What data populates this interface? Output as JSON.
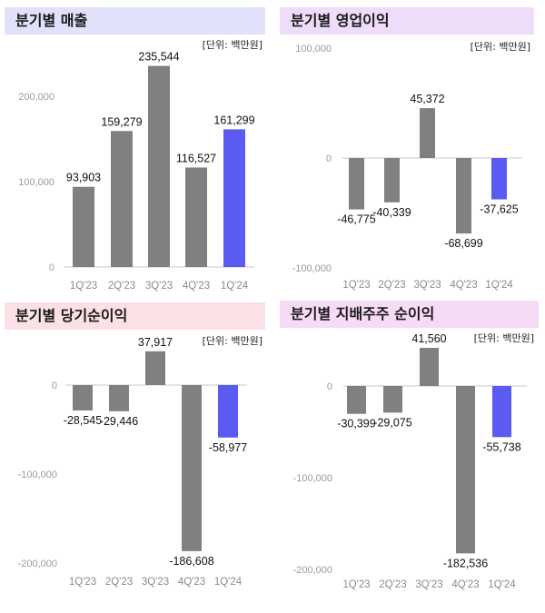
{
  "colors": {
    "bar": "#808080",
    "highlight": "#5b5bf2",
    "axis": "#dcdcdc"
  },
  "chart_data": [
    {
      "type": "bar",
      "title": "분기별 매출",
      "title_bg": "#e1e1fb",
      "unit": "[단위: 백만원]",
      "categories": [
        "1Q'23",
        "2Q'23",
        "3Q'23",
        "4Q'23",
        "1Q'24"
      ],
      "values": [
        93903,
        159279,
        235544,
        116527,
        161299
      ],
      "labels": [
        "93,903",
        "159,279",
        "235,544",
        "116,527",
        "161,299"
      ],
      "y_ticks": [
        {
          "v": 200000,
          "t": "200,000"
        },
        {
          "v": 100000,
          "t": "100,000"
        },
        {
          "v": 0,
          "t": "0"
        }
      ],
      "highlight_index": 4
    },
    {
      "type": "bar",
      "title": "분기별 영업이익",
      "title_bg": "#eedcf8",
      "unit": "[단위: 백만원]",
      "categories": [
        "1Q'23",
        "2Q'23",
        "3Q'23",
        "4Q'23",
        "1Q'24"
      ],
      "values": [
        -46775,
        -40339,
        45372,
        -68699,
        -37625
      ],
      "labels": [
        "-46,775",
        "-40,339",
        "45,372",
        "-68,699",
        "-37,625"
      ],
      "y_ticks": [
        {
          "v": 100000,
          "t": "100,000"
        },
        {
          "v": 0,
          "t": "0"
        },
        {
          "v": -100000,
          "t": "-100,000"
        }
      ],
      "highlight_index": 4
    },
    {
      "type": "bar",
      "title": "분기별 당기순이익",
      "title_bg": "#fbe0e6",
      "unit": "[단위: 백만원]",
      "categories": [
        "1Q'23",
        "2Q'23",
        "3Q'23",
        "4Q'23",
        "1Q'24"
      ],
      "values": [
        -28545,
        -29446,
        37917,
        -186608,
        -58977
      ],
      "labels": [
        "-28,545",
        "-29,446",
        "37,917",
        "-186,608",
        "-58,977"
      ],
      "y_ticks": [
        {
          "v": 0,
          "t": "0"
        },
        {
          "v": -100000,
          "t": "-100,000"
        },
        {
          "v": -200000,
          "t": "-200,000"
        }
      ],
      "highlight_index": 4
    },
    {
      "type": "bar",
      "title": "분기별 지배주주 순이익",
      "title_bg": "#f6dbf5",
      "unit": "[단위: 백만원]",
      "categories": [
        "1Q'23",
        "2Q'23",
        "3Q'23",
        "4Q'23",
        "1Q'24"
      ],
      "values": [
        -30399,
        -29075,
        41560,
        -182536,
        -55738
      ],
      "labels": [
        "-30,399",
        "-29,075",
        "41,560",
        "-182,536",
        "-55,738"
      ],
      "y_ticks": [
        {
          "v": 0,
          "t": "0"
        },
        {
          "v": -100000,
          "t": "-100,000"
        },
        {
          "v": -200000,
          "t": "-200,000"
        }
      ],
      "highlight_index": 4
    }
  ]
}
